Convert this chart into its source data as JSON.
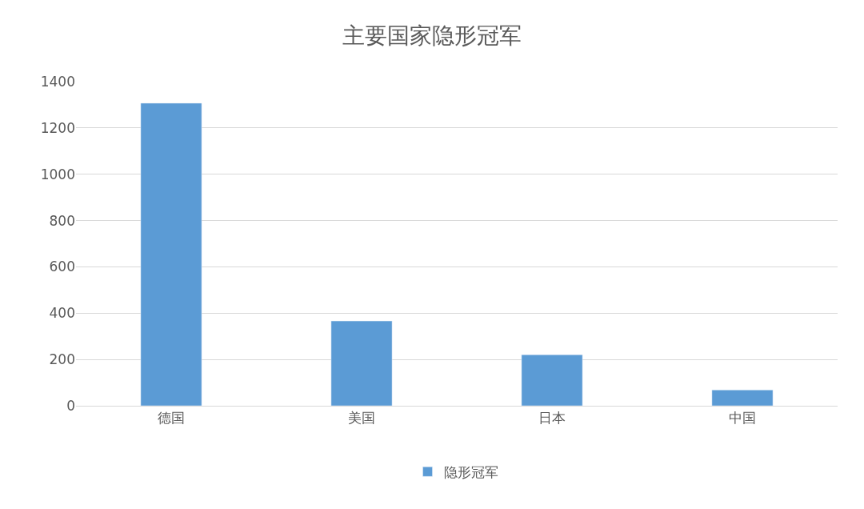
{
  "chart_data": {
    "type": "bar",
    "title": "主要国家隐形冠军",
    "categories": [
      "德国",
      "美国",
      "日本",
      "中国"
    ],
    "series": [
      {
        "name": "隐形冠军",
        "color": "#5b9bd5",
        "values": [
          1307,
          366,
          220,
          68
        ]
      }
    ],
    "ylim": [
      0,
      1400
    ],
    "yticks": [
      0,
      200,
      400,
      600,
      800,
      1000,
      1200,
      1400
    ],
    "grid": "y",
    "legend": "bottom"
  }
}
